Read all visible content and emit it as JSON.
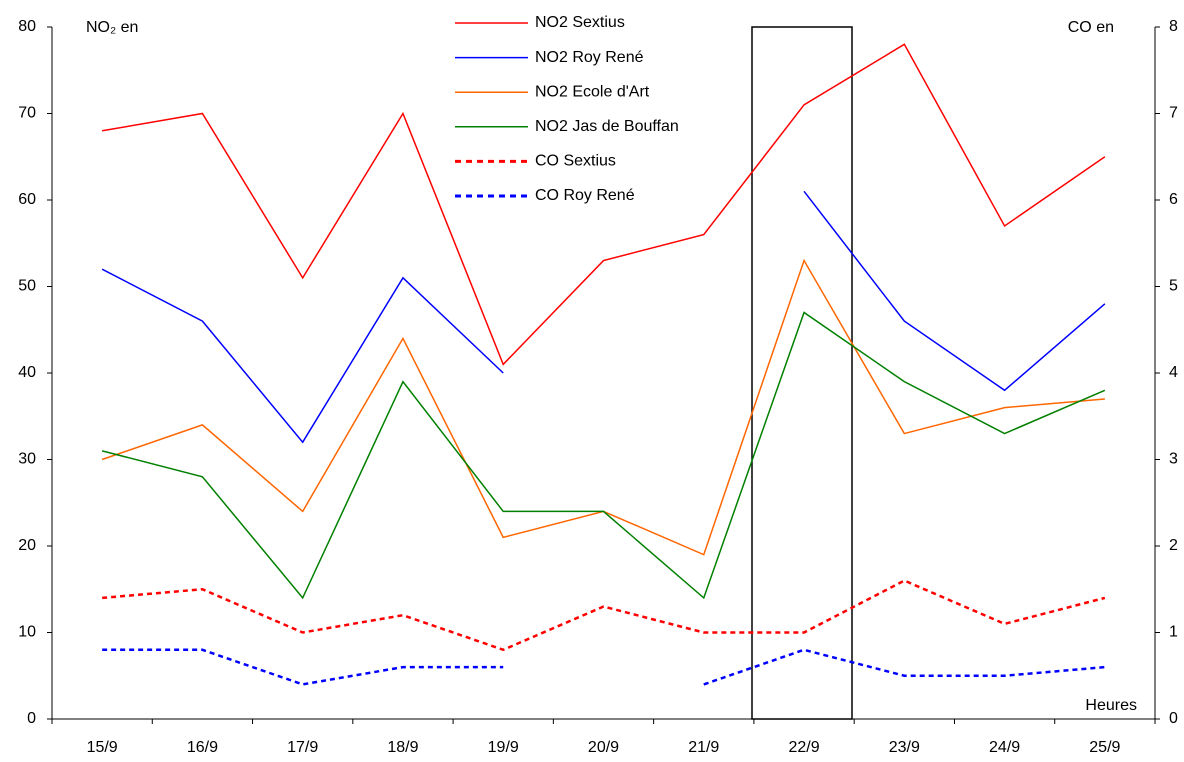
{
  "chart_data": {
    "type": "line",
    "y_label": "NO₂ en",
    "y2_label": "CO en",
    "x_label": "Heures",
    "categories": [
      "15/9",
      "16/9",
      "17/9",
      "18/9",
      "19/9",
      "20/9",
      "21/9",
      "22/9",
      "23/9",
      "24/9",
      "25/9"
    ],
    "series": [
      {
        "name": "NO2 Sextius",
        "color": "#ff0000",
        "style": "solid",
        "values": [
          68,
          70,
          51,
          70,
          41,
          53,
          56,
          71,
          78,
          57,
          65
        ]
      },
      {
        "name": "NO2 Roy René",
        "color": "#0000ff",
        "style": "solid",
        "values": [
          52,
          46,
          32,
          51,
          40,
          null,
          null,
          61,
          46,
          38,
          48
        ]
      },
      {
        "name": "NO2 Ecole d'Art",
        "color": "#ff6600",
        "style": "solid",
        "values": [
          30,
          34,
          24,
          44,
          21,
          24,
          19,
          53,
          33,
          36,
          37
        ]
      },
      {
        "name": "NO2 Jas de Bouffan",
        "color": "#008000",
        "style": "solid",
        "values": [
          31,
          28,
          14,
          39,
          24,
          24,
          14,
          47,
          39,
          33,
          38
        ]
      },
      {
        "name": "CO Sextius",
        "color": "#ff0000",
        "style": "dashed",
        "axis": "y2",
        "values": [
          1.4,
          1.5,
          1.0,
          1.2,
          0.8,
          1.3,
          1.0,
          1.0,
          1.6,
          1.1,
          1.4
        ]
      },
      {
        "name": "CO Roy René",
        "color": "#0000ff",
        "style": "dashed",
        "axis": "y2",
        "values": [
          0.8,
          0.8,
          0.4,
          0.6,
          0.6,
          null,
          0.4,
          0.8,
          0.5,
          0.5,
          0.6
        ]
      }
    ],
    "ylim": [
      0,
      80
    ],
    "yticks": [
      0,
      10,
      20,
      30,
      40,
      50,
      60,
      70,
      80
    ],
    "y2lim": [
      0,
      8
    ],
    "y2ticks": [
      0,
      1,
      2,
      3,
      4,
      5,
      6,
      7,
      8
    ],
    "grid": false,
    "legend": "top"
  }
}
